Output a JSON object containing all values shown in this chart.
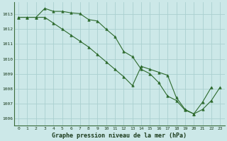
{
  "l1_x": [
    0,
    1,
    2,
    3,
    4,
    5,
    6,
    7,
    8,
    9,
    10,
    11,
    12,
    13,
    14,
    15,
    16,
    17,
    18,
    19,
    20,
    21,
    22
  ],
  "l1_y": [
    1012.8,
    1012.8,
    1012.8,
    1013.4,
    1013.2,
    1013.2,
    1013.1,
    1013.05,
    1012.65,
    1012.55,
    1012.0,
    1011.5,
    1010.5,
    1010.15,
    1009.3,
    1009.0,
    1008.4,
    1007.5,
    1007.2,
    1006.55,
    1006.3,
    1007.1,
    1008.1
  ],
  "l2_x": [
    0,
    1,
    2,
    3,
    4,
    5,
    6,
    7,
    8,
    9,
    10,
    11,
    12,
    13,
    14,
    15,
    16,
    17,
    18,
    19,
    20,
    21,
    22,
    23
  ],
  "l2_y": [
    1012.8,
    1012.8,
    1012.8,
    1012.8,
    1012.4,
    1012.0,
    1011.6,
    1011.2,
    1010.8,
    1010.3,
    1009.8,
    1009.3,
    1008.8,
    1008.2,
    1009.5,
    1009.3,
    1009.1,
    1008.9,
    1007.4,
    1006.6,
    1006.3,
    1006.6,
    1007.2,
    1008.1
  ],
  "line_color": "#2d6a2d",
  "bg_color": "#cce8e8",
  "grid_color": "#aad0d0",
  "title": "Graphe pression niveau de la mer (hPa)",
  "tick_color": "#1a3a1a",
  "ylim": [
    1005.5,
    1013.8
  ],
  "xlim": [
    -0.5,
    23.5
  ],
  "yticks": [
    1006,
    1007,
    1008,
    1009,
    1010,
    1011,
    1012,
    1013
  ],
  "xticks": [
    0,
    1,
    2,
    3,
    4,
    5,
    6,
    7,
    8,
    9,
    10,
    11,
    12,
    13,
    14,
    15,
    16,
    17,
    18,
    19,
    20,
    21,
    22,
    23
  ],
  "xtick_labels": [
    "0",
    "1",
    "2",
    "3",
    "4",
    "5",
    "6",
    "7",
    "8",
    "9",
    "10",
    "11",
    "12",
    "13",
    "14",
    "15",
    "16",
    "17",
    "18",
    "19",
    "20",
    "21",
    "22",
    "23"
  ]
}
